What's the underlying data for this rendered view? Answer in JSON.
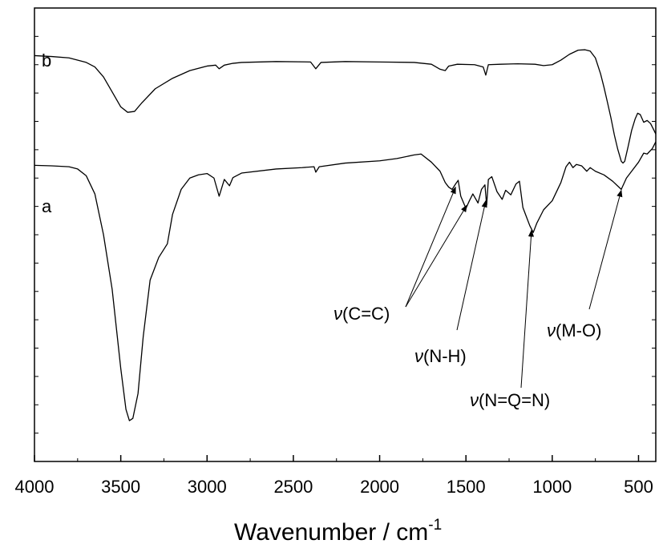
{
  "chart_data": {
    "type": "line",
    "title": "",
    "xlabel": "Wavenumber / cm",
    "xlabel_superscript": "-1",
    "ylabel": "",
    "xlim": [
      4000,
      400
    ],
    "x_reversed": true,
    "xticks": [
      4000,
      3500,
      3000,
      2500,
      2000,
      1500,
      1000,
      500
    ],
    "ylim": [
      0,
      1
    ],
    "y_ticks_unlabeled": true,
    "grid": false,
    "legend": "none",
    "series": [
      {
        "name": "b",
        "color": "#000000",
        "points": [
          [
            4000,
            0.895
          ],
          [
            3900,
            0.893
          ],
          [
            3800,
            0.89
          ],
          [
            3700,
            0.88
          ],
          [
            3650,
            0.87
          ],
          [
            3600,
            0.848
          ],
          [
            3550,
            0.815
          ],
          [
            3500,
            0.782
          ],
          [
            3460,
            0.77
          ],
          [
            3420,
            0.772
          ],
          [
            3380,
            0.79
          ],
          [
            3300,
            0.822
          ],
          [
            3200,
            0.845
          ],
          [
            3100,
            0.862
          ],
          [
            3000,
            0.872
          ],
          [
            2950,
            0.874
          ],
          [
            2930,
            0.866
          ],
          [
            2900,
            0.874
          ],
          [
            2850,
            0.878
          ],
          [
            2800,
            0.88
          ],
          [
            2600,
            0.882
          ],
          [
            2400,
            0.881
          ],
          [
            2370,
            0.866
          ],
          [
            2340,
            0.88
          ],
          [
            2200,
            0.882
          ],
          [
            2000,
            0.881
          ],
          [
            1800,
            0.88
          ],
          [
            1700,
            0.876
          ],
          [
            1650,
            0.865
          ],
          [
            1620,
            0.862
          ],
          [
            1600,
            0.872
          ],
          [
            1550,
            0.876
          ],
          [
            1450,
            0.875
          ],
          [
            1400,
            0.87
          ],
          [
            1385,
            0.852
          ],
          [
            1370,
            0.875
          ],
          [
            1300,
            0.876
          ],
          [
            1200,
            0.877
          ],
          [
            1100,
            0.876
          ],
          [
            1050,
            0.873
          ],
          [
            1000,
            0.875
          ],
          [
            950,
            0.885
          ],
          [
            900,
            0.898
          ],
          [
            850,
            0.907
          ],
          [
            810,
            0.908
          ],
          [
            780,
            0.905
          ],
          [
            750,
            0.89
          ],
          [
            720,
            0.855
          ],
          [
            700,
            0.825
          ],
          [
            680,
            0.792
          ],
          [
            660,
            0.758
          ],
          [
            640,
            0.72
          ],
          [
            620,
            0.688
          ],
          [
            600,
            0.662
          ],
          [
            590,
            0.658
          ],
          [
            580,
            0.662
          ],
          [
            560,
            0.695
          ],
          [
            540,
            0.73
          ],
          [
            520,
            0.755
          ],
          [
            505,
            0.768
          ],
          [
            490,
            0.765
          ],
          [
            470,
            0.748
          ],
          [
            450,
            0.752
          ],
          [
            430,
            0.745
          ],
          [
            410,
            0.73
          ],
          [
            400,
            0.722
          ]
        ]
      },
      {
        "name": "a",
        "color": "#000000",
        "points": [
          [
            4000,
            0.653
          ],
          [
            3900,
            0.652
          ],
          [
            3800,
            0.65
          ],
          [
            3750,
            0.645
          ],
          [
            3700,
            0.63
          ],
          [
            3650,
            0.59
          ],
          [
            3600,
            0.5
          ],
          [
            3550,
            0.38
          ],
          [
            3500,
            0.205
          ],
          [
            3470,
            0.115
          ],
          [
            3450,
            0.09
          ],
          [
            3430,
            0.095
          ],
          [
            3400,
            0.15
          ],
          [
            3370,
            0.275
          ],
          [
            3330,
            0.4
          ],
          [
            3280,
            0.45
          ],
          [
            3230,
            0.48
          ],
          [
            3200,
            0.545
          ],
          [
            3150,
            0.6
          ],
          [
            3100,
            0.625
          ],
          [
            3050,
            0.632
          ],
          [
            3000,
            0.635
          ],
          [
            2960,
            0.625
          ],
          [
            2930,
            0.585
          ],
          [
            2900,
            0.622
          ],
          [
            2870,
            0.608
          ],
          [
            2850,
            0.626
          ],
          [
            2800,
            0.636
          ],
          [
            2600,
            0.645
          ],
          [
            2450,
            0.648
          ],
          [
            2380,
            0.65
          ],
          [
            2370,
            0.638
          ],
          [
            2350,
            0.65
          ],
          [
            2200,
            0.658
          ],
          [
            2000,
            0.663
          ],
          [
            1900,
            0.668
          ],
          [
            1800,
            0.676
          ],
          [
            1760,
            0.678
          ],
          [
            1700,
            0.66
          ],
          [
            1650,
            0.64
          ],
          [
            1620,
            0.615
          ],
          [
            1600,
            0.605
          ],
          [
            1580,
            0.6
          ],
          [
            1560,
            0.612
          ],
          [
            1545,
            0.62
          ],
          [
            1530,
            0.585
          ],
          [
            1500,
            0.558
          ],
          [
            1480,
            0.575
          ],
          [
            1460,
            0.59
          ],
          [
            1430,
            0.57
          ],
          [
            1410,
            0.6
          ],
          [
            1390,
            0.61
          ],
          [
            1380,
            0.565
          ],
          [
            1370,
            0.622
          ],
          [
            1350,
            0.628
          ],
          [
            1320,
            0.595
          ],
          [
            1290,
            0.578
          ],
          [
            1270,
            0.598
          ],
          [
            1240,
            0.588
          ],
          [
            1210,
            0.612
          ],
          [
            1190,
            0.618
          ],
          [
            1170,
            0.56
          ],
          [
            1150,
            0.54
          ],
          [
            1130,
            0.52
          ],
          [
            1110,
            0.505
          ],
          [
            1090,
            0.525
          ],
          [
            1070,
            0.54
          ],
          [
            1050,
            0.555
          ],
          [
            1000,
            0.575
          ],
          [
            950,
            0.615
          ],
          [
            920,
            0.65
          ],
          [
            900,
            0.66
          ],
          [
            880,
            0.648
          ],
          [
            860,
            0.655
          ],
          [
            830,
            0.652
          ],
          [
            800,
            0.64
          ],
          [
            780,
            0.648
          ],
          [
            750,
            0.64
          ],
          [
            700,
            0.632
          ],
          [
            650,
            0.618
          ],
          [
            600,
            0.6
          ],
          [
            570,
            0.625
          ],
          [
            540,
            0.64
          ],
          [
            500,
            0.66
          ],
          [
            470,
            0.68
          ],
          [
            450,
            0.678
          ],
          [
            420,
            0.69
          ],
          [
            400,
            0.705
          ]
        ]
      }
    ],
    "annotations": [
      {
        "prefix": "ν",
        "text": "(C=C)",
        "targets": [
          [
            1560,
            0.605
          ],
          [
            1495,
            0.565
          ]
        ]
      },
      {
        "prefix": "ν",
        "text": "(N-H)",
        "targets": [
          [
            1385,
            0.575
          ]
        ]
      },
      {
        "prefix": "ν",
        "text": "(N=Q=N)",
        "targets": [
          [
            1120,
            0.51
          ]
        ]
      },
      {
        "prefix": "ν",
        "text": "(M-O)",
        "targets": [
          [
            600,
            0.598
          ]
        ]
      }
    ]
  }
}
